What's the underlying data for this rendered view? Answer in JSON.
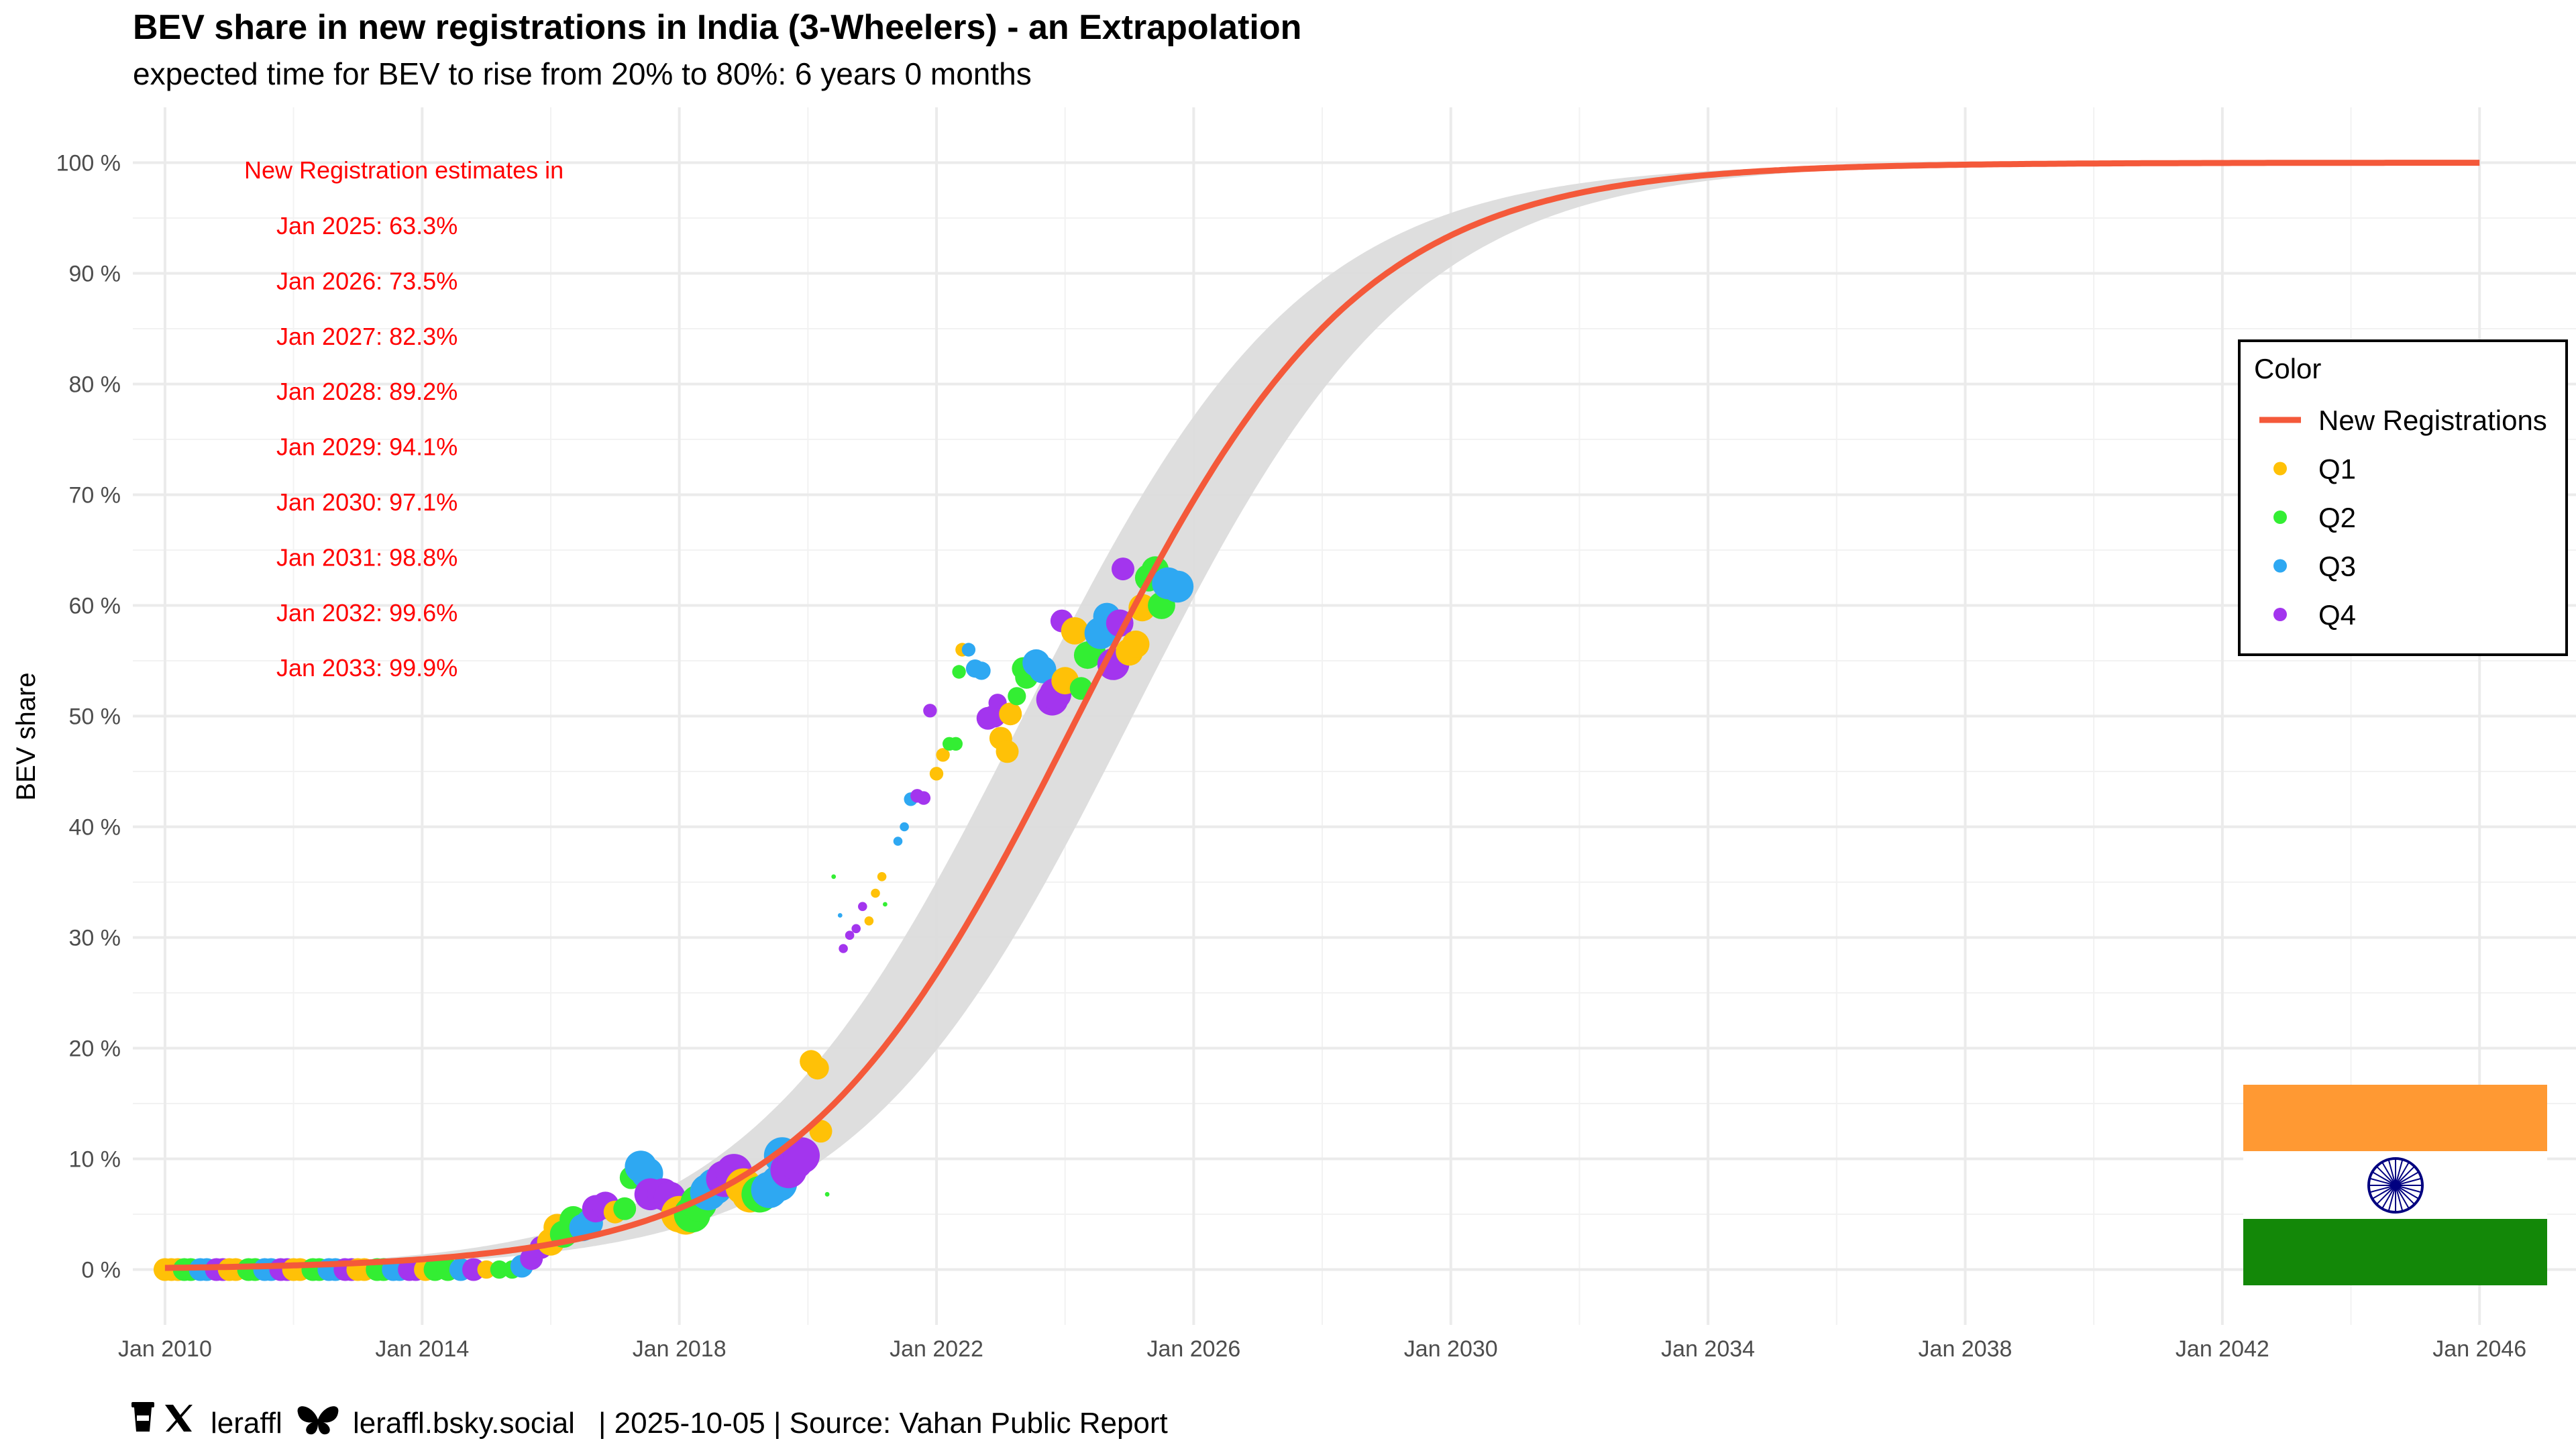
{
  "chart_data": {
    "type": "scatter",
    "title": "BEV share in new registrations in India (3-Wheelers) - an Extrapolation",
    "subtitle": "expected time for BEV to rise from 20% to 80%: 6 years 0 months",
    "xlabel": "",
    "ylabel": "BEV share",
    "xlim": [
      2009.5,
      2047.5
    ],
    "ylim": [
      -5,
      105
    ],
    "x_ticks": [
      {
        "value": 2010,
        "label": "Jan 2010"
      },
      {
        "value": 2014,
        "label": "Jan 2014"
      },
      {
        "value": 2018,
        "label": "Jan 2018"
      },
      {
        "value": 2022,
        "label": "Jan 2022"
      },
      {
        "value": 2026,
        "label": "Jan 2026"
      },
      {
        "value": 2030,
        "label": "Jan 2030"
      },
      {
        "value": 2034,
        "label": "Jan 2034"
      },
      {
        "value": 2038,
        "label": "Jan 2038"
      },
      {
        "value": 2042,
        "label": "Jan 2042"
      },
      {
        "value": 2046,
        "label": "Jan 2046"
      }
    ],
    "y_ticks": [
      {
        "value": 0,
        "label": "0 %"
      },
      {
        "value": 10,
        "label": "10 %"
      },
      {
        "value": 20,
        "label": "20 %"
      },
      {
        "value": 30,
        "label": "30 %"
      },
      {
        "value": 40,
        "label": "40 %"
      },
      {
        "value": 50,
        "label": "50 %"
      },
      {
        "value": 60,
        "label": "60 %"
      },
      {
        "value": 70,
        "label": "70 %"
      },
      {
        "value": 80,
        "label": "80 %"
      },
      {
        "value": 90,
        "label": "90 %"
      },
      {
        "value": 100,
        "label": "100 %"
      }
    ],
    "fit_curve": {
      "name": "New Registrations",
      "color": "#f4593a",
      "model": "logistic",
      "midpoint": 2024.2,
      "steepness": 0.4577,
      "x_start": 2010,
      "x_end": 2046,
      "band_color": "#dcdcdc",
      "band_halfwidth_years": 0.85
    },
    "annotation_header": "New Registration estimates in",
    "estimates": [
      "Jan 2025: 63.3%",
      "Jan 2026: 73.5%",
      "Jan 2027: 82.3%",
      "Jan 2028: 89.2%",
      "Jan 2029: 94.1%",
      "Jan 2030: 97.1%",
      "Jan 2031: 98.8%",
      "Jan 2032: 99.6%",
      "Jan 2033: 99.9%"
    ],
    "quarter_colors": {
      "Q1": "#ffc107",
      "Q2": "#33ee33",
      "Q3": "#2ea8f2",
      "Q4": "#a335ee"
    },
    "points": [
      {
        "x": 2010.0,
        "y": 0.0,
        "s": 5,
        "q": "Q1"
      },
      {
        "x": 2010.1,
        "y": 0.0,
        "s": 5,
        "q": "Q1"
      },
      {
        "x": 2010.2,
        "y": 0.0,
        "s": 5,
        "q": "Q1"
      },
      {
        "x": 2010.3,
        "y": 0.0,
        "s": 5,
        "q": "Q2"
      },
      {
        "x": 2010.4,
        "y": 0.0,
        "s": 5,
        "q": "Q2"
      },
      {
        "x": 2010.55,
        "y": 0.0,
        "s": 5,
        "q": "Q3"
      },
      {
        "x": 2010.65,
        "y": 0.0,
        "s": 5,
        "q": "Q3"
      },
      {
        "x": 2010.8,
        "y": 0.0,
        "s": 5,
        "q": "Q4"
      },
      {
        "x": 2010.9,
        "y": 0.0,
        "s": 5,
        "q": "Q4"
      },
      {
        "x": 2011.0,
        "y": 0.0,
        "s": 5,
        "q": "Q1"
      },
      {
        "x": 2011.1,
        "y": 0.0,
        "s": 5,
        "q": "Q1"
      },
      {
        "x": 2011.3,
        "y": 0.0,
        "s": 5,
        "q": "Q2"
      },
      {
        "x": 2011.4,
        "y": 0.0,
        "s": 5,
        "q": "Q2"
      },
      {
        "x": 2011.55,
        "y": 0.0,
        "s": 5,
        "q": "Q3"
      },
      {
        "x": 2011.65,
        "y": 0.0,
        "s": 5,
        "q": "Q3"
      },
      {
        "x": 2011.8,
        "y": 0.0,
        "s": 5,
        "q": "Q4"
      },
      {
        "x": 2011.9,
        "y": 0.0,
        "s": 5,
        "q": "Q4"
      },
      {
        "x": 2012.0,
        "y": 0.0,
        "s": 5,
        "q": "Q1"
      },
      {
        "x": 2012.1,
        "y": 0.0,
        "s": 5,
        "q": "Q1"
      },
      {
        "x": 2012.3,
        "y": 0.0,
        "s": 5,
        "q": "Q2"
      },
      {
        "x": 2012.4,
        "y": 0.0,
        "s": 5,
        "q": "Q2"
      },
      {
        "x": 2012.55,
        "y": 0.0,
        "s": 5,
        "q": "Q3"
      },
      {
        "x": 2012.65,
        "y": 0.0,
        "s": 5,
        "q": "Q3"
      },
      {
        "x": 2012.8,
        "y": 0.0,
        "s": 5,
        "q": "Q4"
      },
      {
        "x": 2012.9,
        "y": 0.0,
        "s": 5,
        "q": "Q4"
      },
      {
        "x": 2013.0,
        "y": 0.0,
        "s": 5,
        "q": "Q1"
      },
      {
        "x": 2013.1,
        "y": 0.0,
        "s": 5,
        "q": "Q1"
      },
      {
        "x": 2013.3,
        "y": 0.0,
        "s": 5,
        "q": "Q2"
      },
      {
        "x": 2013.4,
        "y": 0.0,
        "s": 5,
        "q": "Q2"
      },
      {
        "x": 2013.55,
        "y": 0.0,
        "s": 5,
        "q": "Q3"
      },
      {
        "x": 2013.65,
        "y": 0.0,
        "s": 5,
        "q": "Q3"
      },
      {
        "x": 2013.8,
        "y": 0.0,
        "s": 5,
        "q": "Q4"
      },
      {
        "x": 2013.9,
        "y": 0.0,
        "s": 5,
        "q": "Q4"
      },
      {
        "x": 2014.05,
        "y": 0.0,
        "s": 5,
        "q": "Q1"
      },
      {
        "x": 2014.2,
        "y": 0.0,
        "s": 5,
        "q": "Q2"
      },
      {
        "x": 2014.4,
        "y": 0.0,
        "s": 5,
        "q": "Q2"
      },
      {
        "x": 2014.6,
        "y": 0.0,
        "s": 5,
        "q": "Q3"
      },
      {
        "x": 2014.8,
        "y": 0.0,
        "s": 5,
        "q": "Q4"
      },
      {
        "x": 2015.0,
        "y": 0.0,
        "s": 4,
        "q": "Q1"
      },
      {
        "x": 2015.2,
        "y": 0.0,
        "s": 4,
        "q": "Q2"
      },
      {
        "x": 2015.4,
        "y": 0.0,
        "s": 4,
        "q": "Q2"
      },
      {
        "x": 2015.55,
        "y": 0.3,
        "s": 5,
        "q": "Q3"
      },
      {
        "x": 2015.7,
        "y": 1.0,
        "s": 5,
        "q": "Q4"
      },
      {
        "x": 2015.85,
        "y": 2.0,
        "s": 5,
        "q": "Q4"
      },
      {
        "x": 2016.0,
        "y": 2.5,
        "s": 6,
        "q": "Q1"
      },
      {
        "x": 2016.1,
        "y": 3.8,
        "s": 6,
        "q": "Q1"
      },
      {
        "x": 2016.2,
        "y": 3.2,
        "s": 6,
        "q": "Q2"
      },
      {
        "x": 2016.35,
        "y": 4.5,
        "s": 6,
        "q": "Q2"
      },
      {
        "x": 2016.5,
        "y": 3.8,
        "s": 6,
        "q": "Q3"
      },
      {
        "x": 2016.6,
        "y": 4.2,
        "s": 6,
        "q": "Q3"
      },
      {
        "x": 2016.7,
        "y": 5.5,
        "s": 6,
        "q": "Q4"
      },
      {
        "x": 2016.85,
        "y": 5.8,
        "s": 6,
        "q": "Q4"
      },
      {
        "x": 2017.0,
        "y": 5.2,
        "s": 5,
        "q": "Q1"
      },
      {
        "x": 2017.15,
        "y": 5.5,
        "s": 5,
        "q": "Q2"
      },
      {
        "x": 2017.25,
        "y": 8.3,
        "s": 5,
        "q": "Q2"
      },
      {
        "x": 2017.4,
        "y": 9.3,
        "s": 7,
        "q": "Q3"
      },
      {
        "x": 2017.5,
        "y": 8.7,
        "s": 7,
        "q": "Q3"
      },
      {
        "x": 2017.55,
        "y": 6.8,
        "s": 7,
        "q": "Q4"
      },
      {
        "x": 2017.75,
        "y": 6.8,
        "s": 7,
        "q": "Q4"
      },
      {
        "x": 2017.85,
        "y": 6.5,
        "s": 7,
        "q": "Q4"
      },
      {
        "x": 2018.0,
        "y": 5.0,
        "s": 8,
        "q": "Q1"
      },
      {
        "x": 2018.1,
        "y": 4.8,
        "s": 8,
        "q": "Q1"
      },
      {
        "x": 2018.2,
        "y": 5.0,
        "s": 8,
        "q": "Q2"
      },
      {
        "x": 2018.3,
        "y": 6.0,
        "s": 8,
        "q": "Q2"
      },
      {
        "x": 2018.45,
        "y": 7.0,
        "s": 8,
        "q": "Q3"
      },
      {
        "x": 2018.55,
        "y": 7.5,
        "s": 8,
        "q": "Q3"
      },
      {
        "x": 2018.7,
        "y": 8.2,
        "s": 8,
        "q": "Q4"
      },
      {
        "x": 2018.85,
        "y": 8.8,
        "s": 8,
        "q": "Q4"
      },
      {
        "x": 2019.0,
        "y": 7.5,
        "s": 8,
        "q": "Q1"
      },
      {
        "x": 2019.1,
        "y": 6.8,
        "s": 8,
        "q": "Q1"
      },
      {
        "x": 2019.25,
        "y": 6.8,
        "s": 8,
        "q": "Q2"
      },
      {
        "x": 2019.4,
        "y": 7.2,
        "s": 8,
        "q": "Q3"
      },
      {
        "x": 2019.55,
        "y": 7.8,
        "s": 8,
        "q": "Q3"
      },
      {
        "x": 2019.6,
        "y": 10.3,
        "s": 8,
        "q": "Q3"
      },
      {
        "x": 2019.7,
        "y": 9.0,
        "s": 8,
        "q": "Q4"
      },
      {
        "x": 2019.8,
        "y": 9.8,
        "s": 8,
        "q": "Q4"
      },
      {
        "x": 2019.9,
        "y": 10.3,
        "s": 8,
        "q": "Q4"
      },
      {
        "x": 2020.05,
        "y": 18.8,
        "s": 5,
        "q": "Q1"
      },
      {
        "x": 2020.15,
        "y": 18.2,
        "s": 5,
        "q": "Q1"
      },
      {
        "x": 2020.2,
        "y": 12.5,
        "s": 5,
        "q": "Q1"
      },
      {
        "x": 2020.3,
        "y": 6.8,
        "s": 1,
        "q": "Q2"
      },
      {
        "x": 2020.4,
        "y": 35.5,
        "s": 1,
        "q": "Q2"
      },
      {
        "x": 2020.5,
        "y": 32.0,
        "s": 1,
        "q": "Q3"
      },
      {
        "x": 2020.55,
        "y": 29.0,
        "s": 2,
        "q": "Q4"
      },
      {
        "x": 2020.65,
        "y": 30.2,
        "s": 2,
        "q": "Q4"
      },
      {
        "x": 2020.75,
        "y": 30.8,
        "s": 2,
        "q": "Q4"
      },
      {
        "x": 2020.85,
        "y": 32.8,
        "s": 2,
        "q": "Q4"
      },
      {
        "x": 2020.95,
        "y": 31.5,
        "s": 2,
        "q": "Q1"
      },
      {
        "x": 2021.05,
        "y": 34.0,
        "s": 2,
        "q": "Q1"
      },
      {
        "x": 2021.15,
        "y": 35.5,
        "s": 2,
        "q": "Q1"
      },
      {
        "x": 2021.2,
        "y": 33.0,
        "s": 1,
        "q": "Q2"
      },
      {
        "x": 2021.4,
        "y": 38.7,
        "s": 2,
        "q": "Q3"
      },
      {
        "x": 2021.5,
        "y": 40.0,
        "s": 2,
        "q": "Q3"
      },
      {
        "x": 2021.6,
        "y": 42.5,
        "s": 3,
        "q": "Q3"
      },
      {
        "x": 2021.7,
        "y": 42.8,
        "s": 3,
        "q": "Q4"
      },
      {
        "x": 2021.8,
        "y": 42.6,
        "s": 3,
        "q": "Q4"
      },
      {
        "x": 2021.9,
        "y": 50.5,
        "s": 3,
        "q": "Q4"
      },
      {
        "x": 2022.0,
        "y": 44.8,
        "s": 3,
        "q": "Q1"
      },
      {
        "x": 2022.1,
        "y": 46.5,
        "s": 3,
        "q": "Q1"
      },
      {
        "x": 2022.2,
        "y": 47.5,
        "s": 3,
        "q": "Q2"
      },
      {
        "x": 2022.3,
        "y": 47.5,
        "s": 3,
        "q": "Q2"
      },
      {
        "x": 2022.35,
        "y": 54.0,
        "s": 3,
        "q": "Q2"
      },
      {
        "x": 2022.4,
        "y": 56.0,
        "s": 3,
        "q": "Q1"
      },
      {
        "x": 2022.5,
        "y": 56.0,
        "s": 3,
        "q": "Q3"
      },
      {
        "x": 2022.6,
        "y": 54.3,
        "s": 4,
        "q": "Q3"
      },
      {
        "x": 2022.7,
        "y": 54.1,
        "s": 4,
        "q": "Q3"
      },
      {
        "x": 2022.8,
        "y": 49.8,
        "s": 5,
        "q": "Q4"
      },
      {
        "x": 2022.9,
        "y": 50.0,
        "s": 5,
        "q": "Q4"
      },
      {
        "x": 2022.95,
        "y": 51.2,
        "s": 4,
        "q": "Q4"
      },
      {
        "x": 2023.0,
        "y": 48.0,
        "s": 5,
        "q": "Q1"
      },
      {
        "x": 2023.1,
        "y": 46.8,
        "s": 5,
        "q": "Q1"
      },
      {
        "x": 2023.15,
        "y": 50.2,
        "s": 5,
        "q": "Q1"
      },
      {
        "x": 2023.25,
        "y": 51.8,
        "s": 4,
        "q": "Q2"
      },
      {
        "x": 2023.35,
        "y": 54.3,
        "s": 5,
        "q": "Q2"
      },
      {
        "x": 2023.4,
        "y": 53.5,
        "s": 5,
        "q": "Q2"
      },
      {
        "x": 2023.55,
        "y": 54.8,
        "s": 6,
        "q": "Q3"
      },
      {
        "x": 2023.65,
        "y": 54.2,
        "s": 6,
        "q": "Q3"
      },
      {
        "x": 2023.8,
        "y": 51.5,
        "s": 7,
        "q": "Q4"
      },
      {
        "x": 2023.85,
        "y": 52.0,
        "s": 7,
        "q": "Q4"
      },
      {
        "x": 2023.95,
        "y": 58.6,
        "s": 5,
        "q": "Q4"
      },
      {
        "x": 2024.0,
        "y": 53.2,
        "s": 6,
        "q": "Q1"
      },
      {
        "x": 2024.15,
        "y": 57.7,
        "s": 6,
        "q": "Q1"
      },
      {
        "x": 2024.25,
        "y": 52.5,
        "s": 5,
        "q": "Q2"
      },
      {
        "x": 2024.35,
        "y": 55.5,
        "s": 6,
        "q": "Q2"
      },
      {
        "x": 2024.45,
        "y": 56.0,
        "s": 5,
        "q": "Q2"
      },
      {
        "x": 2024.55,
        "y": 57.5,
        "s": 7,
        "q": "Q3"
      },
      {
        "x": 2024.65,
        "y": 59.0,
        "s": 6,
        "q": "Q3"
      },
      {
        "x": 2024.75,
        "y": 54.7,
        "s": 7,
        "q": "Q4"
      },
      {
        "x": 2024.85,
        "y": 58.4,
        "s": 6,
        "q": "Q4"
      },
      {
        "x": 2024.9,
        "y": 63.3,
        "s": 5,
        "q": "Q4"
      },
      {
        "x": 2025.0,
        "y": 55.8,
        "s": 6,
        "q": "Q1"
      },
      {
        "x": 2025.1,
        "y": 56.5,
        "s": 6,
        "q": "Q1"
      },
      {
        "x": 2025.2,
        "y": 59.8,
        "s": 6,
        "q": "Q1"
      },
      {
        "x": 2025.3,
        "y": 62.5,
        "s": 6,
        "q": "Q2"
      },
      {
        "x": 2025.4,
        "y": 63.2,
        "s": 6,
        "q": "Q2"
      },
      {
        "x": 2025.5,
        "y": 60.0,
        "s": 6,
        "q": "Q2"
      },
      {
        "x": 2025.6,
        "y": 62.0,
        "s": 7,
        "q": "Q3"
      },
      {
        "x": 2025.75,
        "y": 61.7,
        "s": 7,
        "q": "Q3"
      }
    ]
  },
  "legend": {
    "title": "Color",
    "items": [
      {
        "label": "New Registrations",
        "kind": "line",
        "color": "#f4593a"
      },
      {
        "label": "Q1",
        "kind": "point",
        "color": "#ffc107"
      },
      {
        "label": "Q2",
        "kind": "point",
        "color": "#33ee33"
      },
      {
        "label": "Q3",
        "kind": "point",
        "color": "#2ea8f2"
      },
      {
        "label": "Q4",
        "kind": "point",
        "color": "#a335ee"
      }
    ]
  },
  "flag": {
    "saffron": "#ff9933",
    "white": "#ffffff",
    "green": "#138808",
    "chakra": "#000080"
  },
  "caption": {
    "handle": "leraffl",
    "bluesky": "leraffl.bsky.social",
    "date_source": "| 2025-10-05 | Source: Vahan Public Report"
  }
}
